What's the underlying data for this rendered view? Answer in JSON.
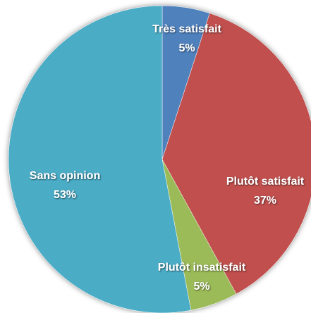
{
  "chart_data": {
    "type": "pie",
    "categories": [
      "Très satisfait",
      "Plutôt satisfait",
      "Plutôt insatisfait",
      "Sans opinion"
    ],
    "values": [
      5,
      37,
      5,
      53
    ],
    "value_labels": [
      "5%",
      "37%",
      "5%",
      "53%"
    ],
    "colors": [
      "#4f81bd",
      "#c0504d",
      "#9bbb59",
      "#4bacc6"
    ]
  }
}
